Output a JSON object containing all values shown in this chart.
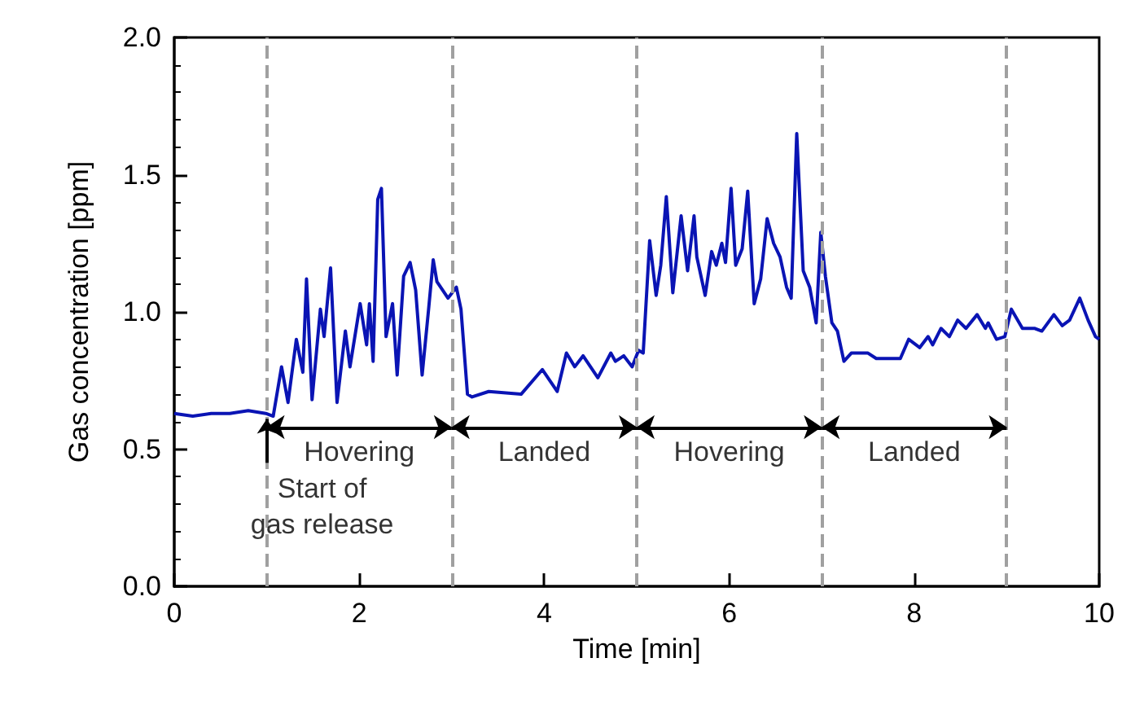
{
  "chart_data": {
    "type": "line",
    "xlabel": "Time [min]",
    "ylabel": "Gas concentration [ppm]",
    "xlim": [
      0,
      10
    ],
    "xticks": [
      0,
      2,
      4,
      6,
      8,
      10
    ],
    "ylim": [
      0,
      2
    ],
    "yticks": [
      {
        "value": 0,
        "label": "0.0"
      },
      0.5,
      {
        "value": 1,
        "label": "1.0"
      },
      1.5,
      {
        "value": 2,
        "label": "2.0"
      }
    ],
    "grid": false,
    "marker": "none",
    "line_style": "solid",
    "series": [
      {
        "color": "#0a14b4",
        "x": [
          0,
          0.2,
          0.4,
          0.6,
          0.8,
          0.99,
          1.07,
          1.16,
          1.23,
          1.32,
          1.39,
          1.43,
          1.49,
          1.58,
          1.62,
          1.69,
          1.76,
          1.85,
          1.9,
          2.01,
          2.08,
          2.11,
          2.15,
          2.2,
          2.24,
          2.29,
          2.36,
          2.41,
          2.48,
          2.55,
          2.61,
          2.68,
          2.75,
          2.8,
          2.84,
          2.96,
          3.05,
          3.1,
          3.17,
          3.22,
          3.4,
          3.75,
          3.98,
          4.14,
          4.24,
          4.33,
          4.42,
          4.58,
          4.72,
          4.77,
          4.86,
          4.95,
          5.02,
          5.07,
          5.14,
          5.21,
          5.26,
          5.32,
          5.39,
          5.48,
          5.55,
          5.62,
          5.65,
          5.74,
          5.81,
          5.86,
          5.92,
          5.96,
          6.02,
          6.07,
          6.14,
          6.2,
          6.27,
          6.34,
          6.41,
          6.48,
          6.55,
          6.62,
          6.67,
          6.73,
          6.8,
          6.87,
          6.94,
          6.99,
          7.04,
          7.11,
          7.17,
          7.24,
          7.32,
          7.5,
          7.59,
          7.85,
          7.94,
          8.06,
          8.15,
          8.2,
          8.29,
          8.38,
          8.47,
          8.56,
          8.68,
          8.77,
          8.8,
          8.89,
          8.98,
          9.05,
          9.17,
          9.3,
          9.38,
          9.51,
          9.6,
          9.68,
          9.79,
          9.88,
          9.96,
          10
        ],
        "values": [
          0.63,
          0.62,
          0.63,
          0.63,
          0.64,
          0.63,
          0.62,
          0.8,
          0.67,
          0.9,
          0.78,
          1.12,
          0.68,
          1.01,
          0.91,
          1.16,
          0.67,
          0.93,
          0.8,
          1.03,
          0.88,
          1.03,
          0.82,
          1.41,
          1.45,
          0.91,
          1.03,
          0.77,
          1.13,
          1.18,
          1.08,
          0.77,
          1.01,
          1.19,
          1.11,
          1.05,
          1.09,
          1.01,
          0.7,
          0.69,
          0.71,
          0.7,
          0.79,
          0.71,
          0.85,
          0.8,
          0.84,
          0.76,
          0.85,
          0.82,
          0.84,
          0.8,
          0.86,
          0.85,
          1.26,
          1.06,
          1.17,
          1.42,
          1.07,
          1.35,
          1.15,
          1.35,
          1.2,
          1.06,
          1.22,
          1.17,
          1.25,
          1.18,
          1.45,
          1.17,
          1.23,
          1.44,
          1.03,
          1.12,
          1.34,
          1.25,
          1.2,
          1.09,
          1.05,
          1.65,
          1.15,
          1.09,
          0.96,
          1.29,
          1.13,
          0.96,
          0.93,
          0.82,
          0.85,
          0.85,
          0.83,
          0.83,
          0.9,
          0.87,
          0.91,
          0.88,
          0.94,
          0.91,
          0.97,
          0.94,
          0.99,
          0.94,
          0.96,
          0.9,
          0.91,
          1.01,
          0.94,
          0.94,
          0.93,
          0.99,
          0.95,
          0.97,
          1.05,
          0.97,
          0.91,
          0.9
        ]
      }
    ],
    "ref_lines": [
      {
        "axis": "x",
        "value": 1,
        "color": "#a0a0a0",
        "line_style": "dashed"
      },
      {
        "axis": "x",
        "value": 3,
        "color": "#a0a0a0",
        "line_style": "dashed"
      },
      {
        "axis": "x",
        "value": 5,
        "color": "#a0a0a0",
        "line_style": "dashed"
      },
      {
        "axis": "x",
        "value": 7,
        "color": "#a0a0a0",
        "line_style": "dashed"
      },
      {
        "axis": "x",
        "value": 9,
        "color": "#a0a0a0",
        "line_style": "dashed"
      }
    ],
    "annotations": [
      "Hovering",
      "Landed",
      "Hovering",
      "Landed",
      {
        "text": "Start of\ngas release",
        "x": 1,
        "y": 0.62
      }
    ]
  }
}
